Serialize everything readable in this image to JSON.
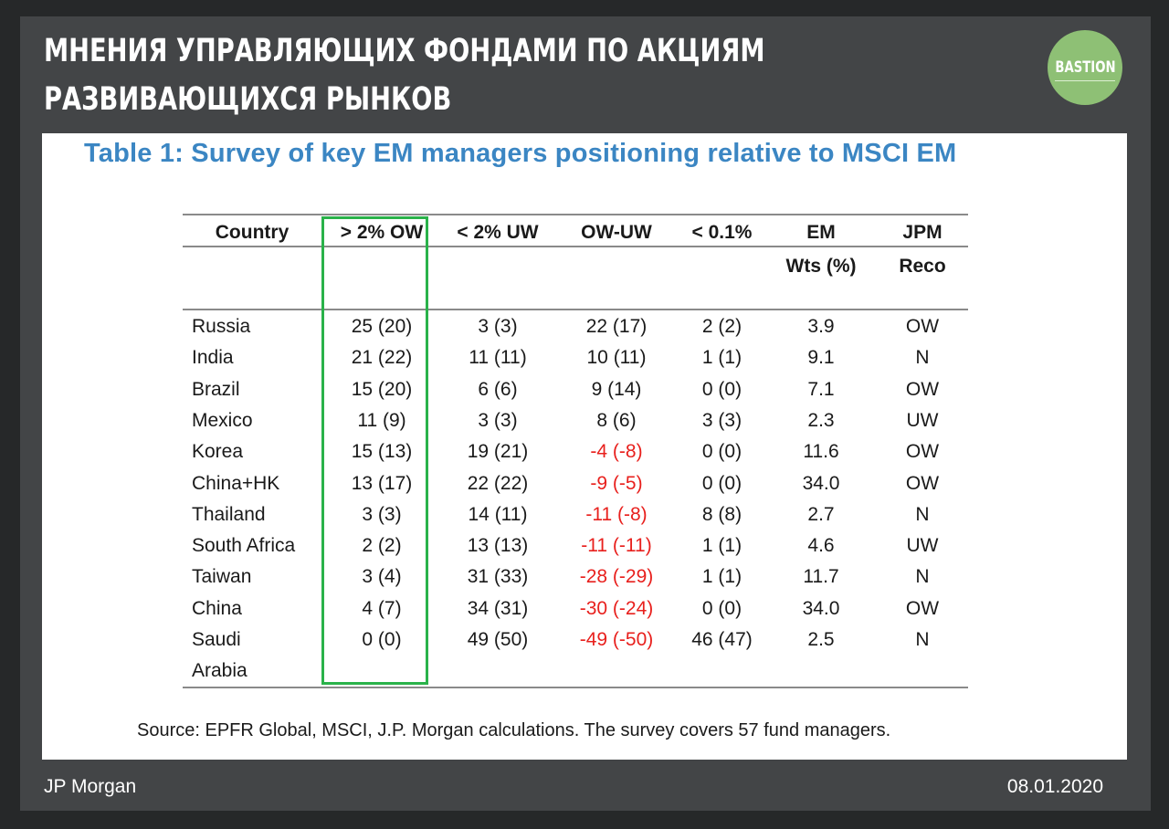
{
  "slide": {
    "heading_line1": "Мнения управляющих фондами по акциям",
    "heading_line2": "развивающихся рынков",
    "logo_text": "BASTION",
    "footer_left": "JP Morgan",
    "footer_right": "08.01.2020"
  },
  "table": {
    "title": "Table 1: Survey of key EM managers positioning relative to MSCI EM",
    "headers": [
      "Country",
      "> 2% OW",
      "< 2% UW",
      "OW-UW",
      "< 0.1%",
      "EM",
      "JPM"
    ],
    "headers_line2": [
      "",
      "",
      "",
      "",
      "",
      "Wts (%)",
      "Reco"
    ],
    "rows": [
      [
        "Russia",
        "25 (20)",
        "3 (3)",
        "22 (17)",
        "2 (2)",
        "3.9",
        "OW"
      ],
      [
        "India",
        "21 (22)",
        "11 (11)",
        "10 (11)",
        "1 (1)",
        "9.1",
        "N"
      ],
      [
        "Brazil",
        "15 (20)",
        "6 (6)",
        "9 (14)",
        "0 (0)",
        "7.1",
        "OW"
      ],
      [
        "Mexico",
        "11 (9)",
        "3 (3)",
        "8 (6)",
        "3 (3)",
        "2.3",
        "UW"
      ],
      [
        "Korea",
        "15 (13)",
        "19 (21)",
        "-4 (-8)",
        "0 (0)",
        "11.6",
        "OW"
      ],
      [
        "China+HK",
        "13 (17)",
        "22 (22)",
        "-9 (-5)",
        "0 (0)",
        "34.0",
        "OW"
      ],
      [
        "Thailand",
        "3 (3)",
        "14 (11)",
        "-11 (-8)",
        "8 (8)",
        "2.7",
        "N"
      ],
      [
        "South Africa",
        "2 (2)",
        "13 (13)",
        "-11 (-11)",
        "1 (1)",
        "4.6",
        "UW"
      ],
      [
        "Taiwan",
        "3 (4)",
        "31 (33)",
        "-28 (-29)",
        "1 (1)",
        "11.7",
        "N"
      ],
      [
        "China",
        "4 (7)",
        "34 (31)",
        "-30 (-24)",
        "0 (0)",
        "34.0",
        "OW"
      ],
      [
        "Saudi",
        "0 (0)",
        "49 (50)",
        "-49 (-50)",
        "46 (47)",
        "2.5",
        "N"
      ]
    ],
    "last_row_continuation": "Arabia",
    "source": "Source: EPFR Global, MSCI, J.P. Morgan calculations. The survey covers 57 fund managers.",
    "colors": {
      "title": "#3b86c3",
      "negative": "#e8201d",
      "highlight": "#2ab24a"
    },
    "highlighted_column": "> 2% OW"
  }
}
